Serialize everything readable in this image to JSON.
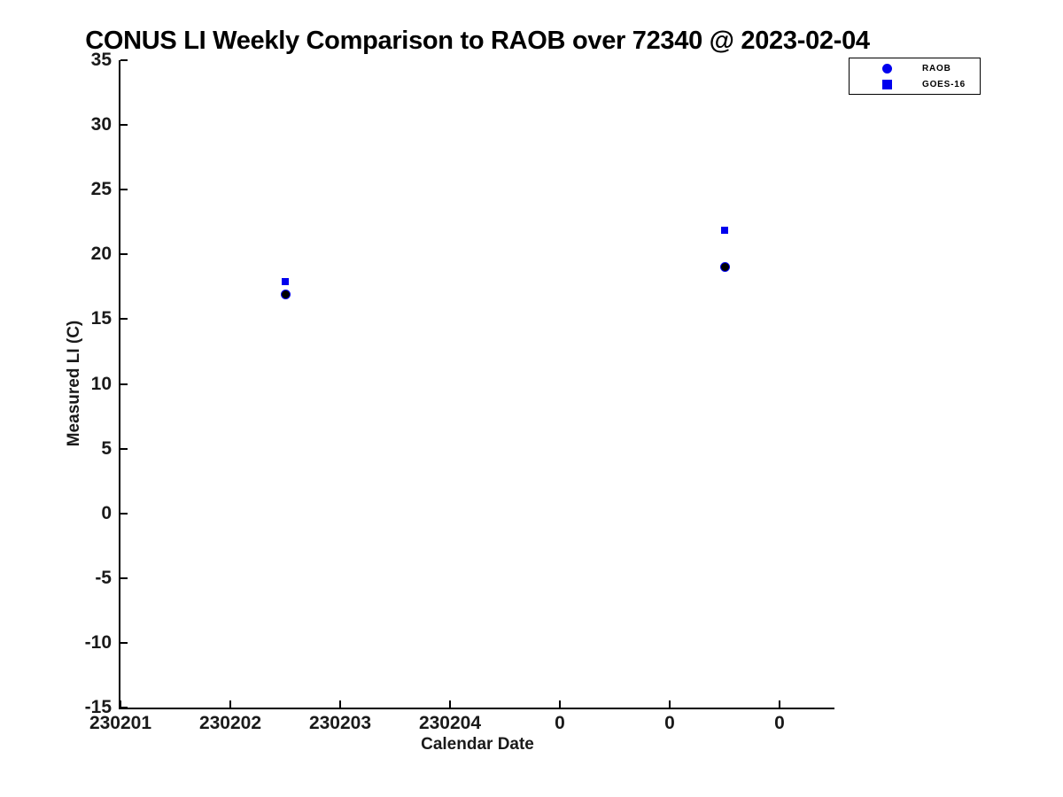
{
  "page": {
    "background": "#ffffff"
  },
  "chart_data": {
    "type": "scatter",
    "title": "CONUS LI Weekly Comparison to RAOB over 72340 @ 2023-02-04",
    "xlabel": "Calendar Date",
    "ylabel": "Measured LI (C)",
    "xlim": [
      1,
      7.5
    ],
    "ylim": [
      -15,
      35
    ],
    "grid": false,
    "x_ticks": [
      {
        "value": 1,
        "label": "230201"
      },
      {
        "value": 2,
        "label": "230202"
      },
      {
        "value": 3,
        "label": "230203"
      },
      {
        "value": 4,
        "label": "230204"
      },
      {
        "value": 5,
        "label": "0"
      },
      {
        "value": 6,
        "label": "0"
      },
      {
        "value": 7,
        "label": "0"
      }
    ],
    "y_ticks": [
      {
        "value": 35,
        "label": "35"
      },
      {
        "value": 30,
        "label": "30"
      },
      {
        "value": 25,
        "label": "25"
      },
      {
        "value": 20,
        "label": "20"
      },
      {
        "value": 15,
        "label": "15"
      },
      {
        "value": 10,
        "label": "10"
      },
      {
        "value": 5,
        "label": "5"
      },
      {
        "value": 0,
        "label": "0"
      },
      {
        "value": -5,
        "label": "-5"
      },
      {
        "value": -10,
        "label": "-10"
      },
      {
        "value": -15,
        "label": "-15"
      }
    ],
    "series": [
      {
        "name": "RAOB",
        "marker": "circle",
        "face_color": "#000000",
        "edge_color": "#0000ee",
        "points": [
          {
            "x": 2.5,
            "y": 16.9
          },
          {
            "x": 6.5,
            "y": 19.0
          }
        ]
      },
      {
        "name": "GOES-16",
        "marker": "square",
        "face_color": "#0000ee",
        "edge_color": "#0000ee",
        "points": [
          {
            "x": 2.5,
            "y": 17.9
          },
          {
            "x": 6.5,
            "y": 21.9
          }
        ]
      }
    ],
    "legend": {
      "position": "top-right-outside",
      "entries": [
        {
          "label": "RAOB",
          "marker": "circle",
          "color": "#0000ee"
        },
        {
          "label": "GOES-16",
          "marker": "square",
          "color": "#0000ee"
        }
      ]
    },
    "colors": {
      "accent_blue": "#0000ee",
      "marker_black": "#000000",
      "text": "#1a1a1a"
    }
  }
}
